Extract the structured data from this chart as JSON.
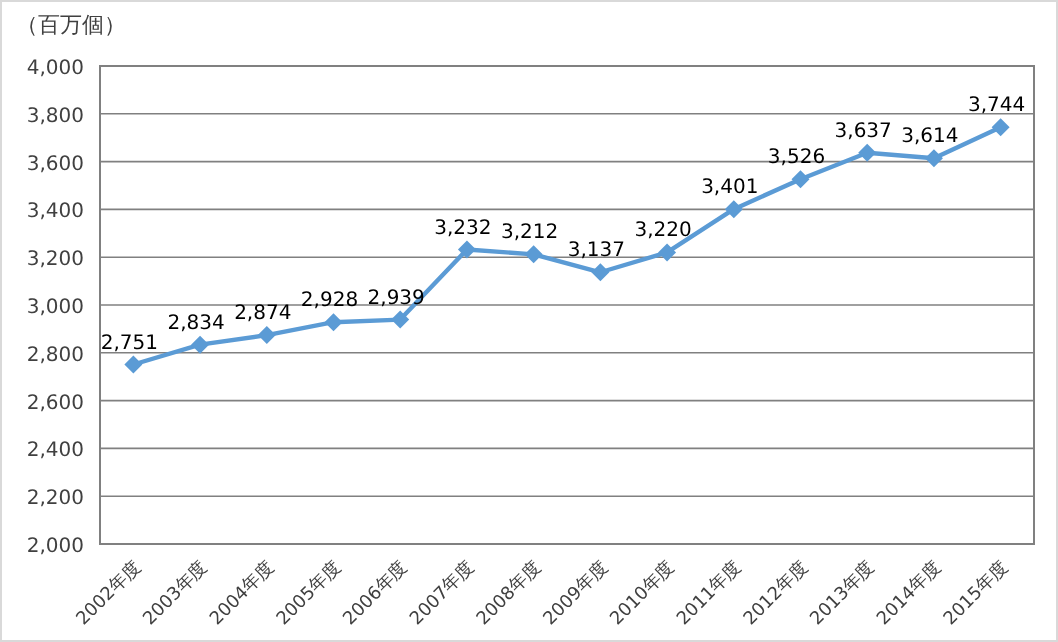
{
  "chart_data": {
    "type": "line",
    "ylabel": "（百万個）",
    "categories": [
      "2002年度",
      "2003年度",
      "2004年度",
      "2005年度",
      "2006年度",
      "2007年度",
      "2008年度",
      "2009年度",
      "2010年度",
      "2011年度",
      "2012年度",
      "2013年度",
      "2014年度",
      "2015年度"
    ],
    "series": [
      {
        "color": "#5b9bd5",
        "values": [
          2751,
          2834,
          2874,
          2928,
          2939,
          3232,
          3212,
          3137,
          3220,
          3401,
          3526,
          3637,
          3614,
          3744
        ],
        "value_labels": [
          "2,751",
          "2,834",
          "2,874",
          "2,928",
          "2,939",
          "3,232",
          "3,212",
          "3,137",
          "3,220",
          "3,401",
          "3,526",
          "3,637",
          "3,614",
          "3,744"
        ]
      }
    ],
    "ylim": [
      2000,
      4000
    ],
    "yticks": [
      {
        "value": 2000,
        "label": "2,000"
      },
      {
        "value": 2200,
        "label": "2,200"
      },
      {
        "value": 2400,
        "label": "2,400"
      },
      {
        "value": 2600,
        "label": "2,600"
      },
      {
        "value": 2800,
        "label": "2,800"
      },
      {
        "value": 3000,
        "label": "3,000"
      },
      {
        "value": 3200,
        "label": "3,200"
      },
      {
        "value": 3400,
        "label": "3,400"
      },
      {
        "value": 3600,
        "label": "3,600"
      },
      {
        "value": 3800,
        "label": "3,800"
      },
      {
        "value": 4000,
        "label": "4,000"
      }
    ],
    "grid": "y",
    "marker": "diamond",
    "line_style": "solid"
  }
}
